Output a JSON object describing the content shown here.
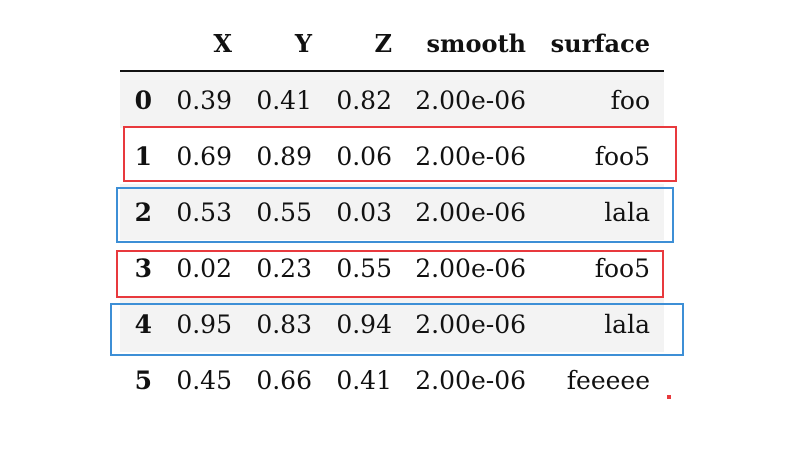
{
  "table": {
    "columns": [
      "",
      "X",
      "Y",
      "Z",
      "smooth",
      "surface"
    ],
    "rows": [
      {
        "index": "0",
        "X": "0.39",
        "Y": "0.41",
        "Z": "0.82",
        "smooth": "2.00e-06",
        "surface": "foo"
      },
      {
        "index": "1",
        "X": "0.69",
        "Y": "0.89",
        "Z": "0.06",
        "smooth": "2.00e-06",
        "surface": "foo5"
      },
      {
        "index": "2",
        "X": "0.53",
        "Y": "0.55",
        "Z": "0.03",
        "smooth": "2.00e-06",
        "surface": "lala"
      },
      {
        "index": "3",
        "X": "0.02",
        "Y": "0.23",
        "Z": "0.55",
        "smooth": "2.00e-06",
        "surface": "foo5"
      },
      {
        "index": "4",
        "X": "0.95",
        "Y": "0.83",
        "Z": "0.94",
        "smooth": "2.00e-06",
        "surface": "lala"
      },
      {
        "index": "5",
        "X": "0.45",
        "Y": "0.66",
        "Z": "0.41",
        "smooth": "2.00e-06",
        "surface": "feeeee"
      }
    ]
  },
  "highlights": {
    "red_color": "#e8393d",
    "blue_color": "#3d8fd6",
    "red_rows": [
      "1",
      "3"
    ],
    "blue_rows": [
      "2",
      "4"
    ]
  }
}
